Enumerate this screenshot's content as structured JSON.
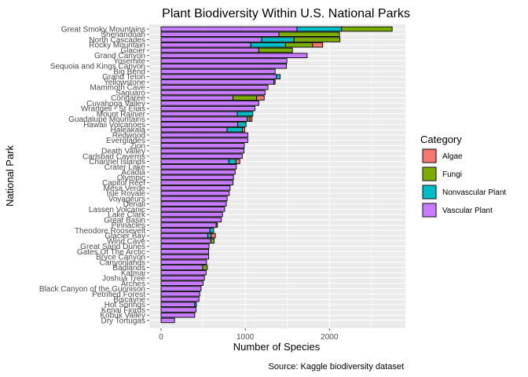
{
  "chart_data": {
    "type": "bar",
    "orientation": "horizontal",
    "stacked": true,
    "title": "Plant Biodiversity Within U.S. National Parks",
    "xlabel": "Number of Species",
    "ylabel": "National Park",
    "caption": "Source: Kaggle biodiversity dataset",
    "xlim": [
      0,
      2800
    ],
    "xticks": [
      0,
      1000,
      2000
    ],
    "grid": true,
    "legend": {
      "title": "Category",
      "position": "right"
    },
    "categories": [
      "Great Smoky Mountains",
      "Shenandoah",
      "North Cascades",
      "Rocky Mountain",
      "Glacier",
      "Grand Canyon",
      "Yosemite",
      "Sequoia and Kings Canyon",
      "Big Bend",
      "Grand Teton",
      "Yellowstone",
      "Mammoth Cave",
      "Saguaro",
      "Congaree",
      "Cuyahoga Valley",
      "Wrangell - St Elias",
      "Mount Rainier",
      "Guadalupe Mountains",
      "Hawaii Volcanoes",
      "Haleakala",
      "Redwood",
      "Everglades",
      "Zion",
      "Death Valley",
      "Carlsbad Caverns",
      "Channel Islands",
      "Crater Lake",
      "Acadia",
      "Olympic",
      "Capitol Reef",
      "Mesa Verde",
      "Isle Royale",
      "Voyageurs",
      "Denali",
      "Lassen Volcanic",
      "Lake Clark",
      "Great Basin",
      "Pinnacles",
      "Theodore Roosevelt",
      "Glacier Bay",
      "Wind Cave",
      "Great Sand Dunes",
      "Gates Of The Arctic",
      "Bryce Canyon",
      "Canyonlands",
      "Badlands",
      "Katmai",
      "Joshua Tree",
      "Arches",
      "Black Canyon of the Gunnison",
      "Petrified Forest",
      "Biscayne",
      "Hot Springs",
      "Kenai Fjords",
      "Kobuk Valley",
      "Dry Tortugas"
    ],
    "series": [
      {
        "name": "Vascular Plant",
        "color": "#C77CFF",
        "values": [
          1615,
          1400,
          1195,
          1065,
          1160,
          1735,
          1495,
          1490,
          1355,
          1370,
          1340,
          1270,
          1235,
          855,
          1160,
          1115,
          905,
          1025,
          910,
          785,
          1030,
          1030,
          990,
          985,
          965,
          805,
          895,
          880,
          860,
          855,
          820,
          810,
          785,
          775,
          755,
          730,
          715,
          655,
          580,
          555,
          590,
          570,
          565,
          565,
          540,
          495,
          535,
          515,
          500,
          475,
          460,
          450,
          400,
          415,
          400,
          160
        ]
      },
      {
        "name": "Nonvascular Plant",
        "color": "#00BFC4",
        "values": [
          530,
          0,
          385,
          415,
          0,
          0,
          0,
          0,
          0,
          45,
          15,
          0,
          0,
          0,
          0,
          0,
          185,
          0,
          100,
          180,
          0,
          0,
          0,
          0,
          0,
          85,
          0,
          0,
          0,
          0,
          0,
          0,
          0,
          0,
          0,
          0,
          0,
          0,
          45,
          40,
          0,
          0,
          0,
          0,
          0,
          0,
          0,
          0,
          0,
          0,
          0,
          0,
          20,
          0,
          0,
          0
        ]
      },
      {
        "name": "Fungi",
        "color": "#7CAE00",
        "values": [
          600,
          720,
          545,
          320,
          400,
          0,
          0,
          0,
          0,
          0,
          0,
          0,
          0,
          280,
          0,
          0,
          0,
          30,
          0,
          0,
          0,
          0,
          0,
          0,
          0,
          0,
          0,
          0,
          0,
          0,
          0,
          0,
          0,
          0,
          0,
          0,
          0,
          15,
          0,
          0,
          40,
          0,
          0,
          0,
          0,
          55,
          0,
          0,
          0,
          0,
          0,
          0,
          0,
          0,
          0,
          0
        ]
      },
      {
        "name": "Algae",
        "color": "#F8766D",
        "values": [
          0,
          0,
          0,
          120,
          0,
          0,
          0,
          0,
          0,
          0,
          0,
          0,
          0,
          90,
          0,
          0,
          0,
          25,
          0,
          30,
          0,
          0,
          0,
          0,
          0,
          45,
          0,
          0,
          0,
          0,
          0,
          0,
          0,
          0,
          0,
          0,
          0,
          0,
          0,
          50,
          0,
          0,
          0,
          0,
          0,
          0,
          0,
          0,
          0,
          0,
          0,
          0,
          0,
          0,
          0,
          0
        ]
      }
    ],
    "legend_order": [
      "Algae",
      "Fungi",
      "Nonvascular Plant",
      "Vascular Plant"
    ]
  }
}
